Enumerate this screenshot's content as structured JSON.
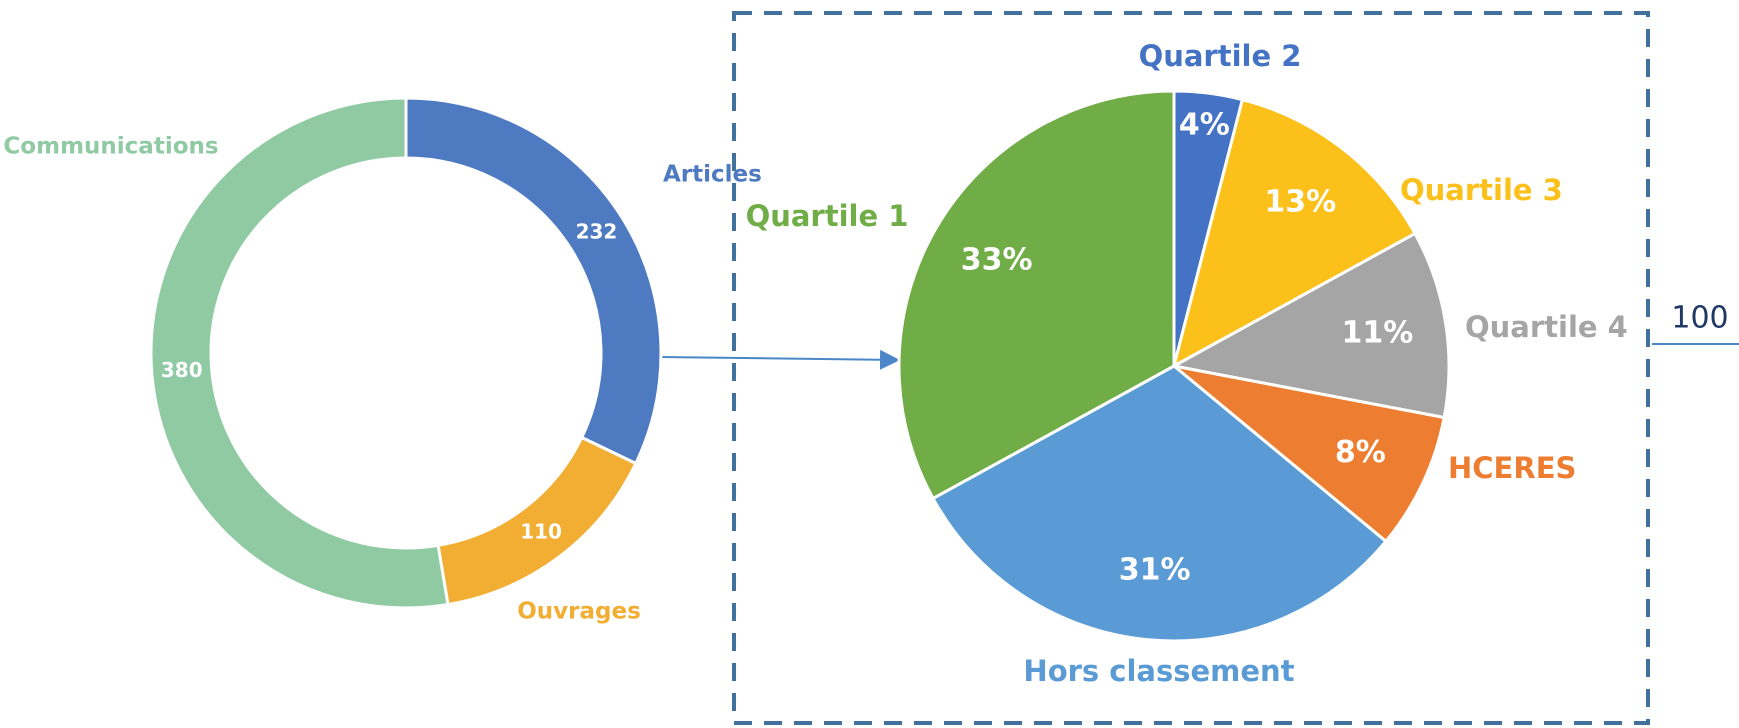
{
  "chart_data": [
    {
      "type": "donut",
      "categories": [
        "Articles",
        "Ouvrages",
        "Communications"
      ],
      "values": [
        232,
        110,
        380
      ],
      "colors": [
        "#4e7ac1",
        "#f2ad33",
        "#8fcaa3"
      ]
    },
    {
      "type": "pie",
      "categories": [
        "Quartile 2",
        "Quartile 3",
        "Quartile 4",
        "HCERES",
        "Hors classement",
        "Quartile 1"
      ],
      "values": [
        4,
        13,
        11,
        8,
        31,
        33
      ],
      "value_labels": [
        "4%",
        "13%",
        "11%",
        "8%",
        "31%",
        "33%"
      ],
      "colors": [
        "#4472c4",
        "#fbc01a",
        "#a5a5a5",
        "#ed7d31",
        "#5b9bd5",
        "#70ad47"
      ]
    }
  ],
  "side_label": "100"
}
